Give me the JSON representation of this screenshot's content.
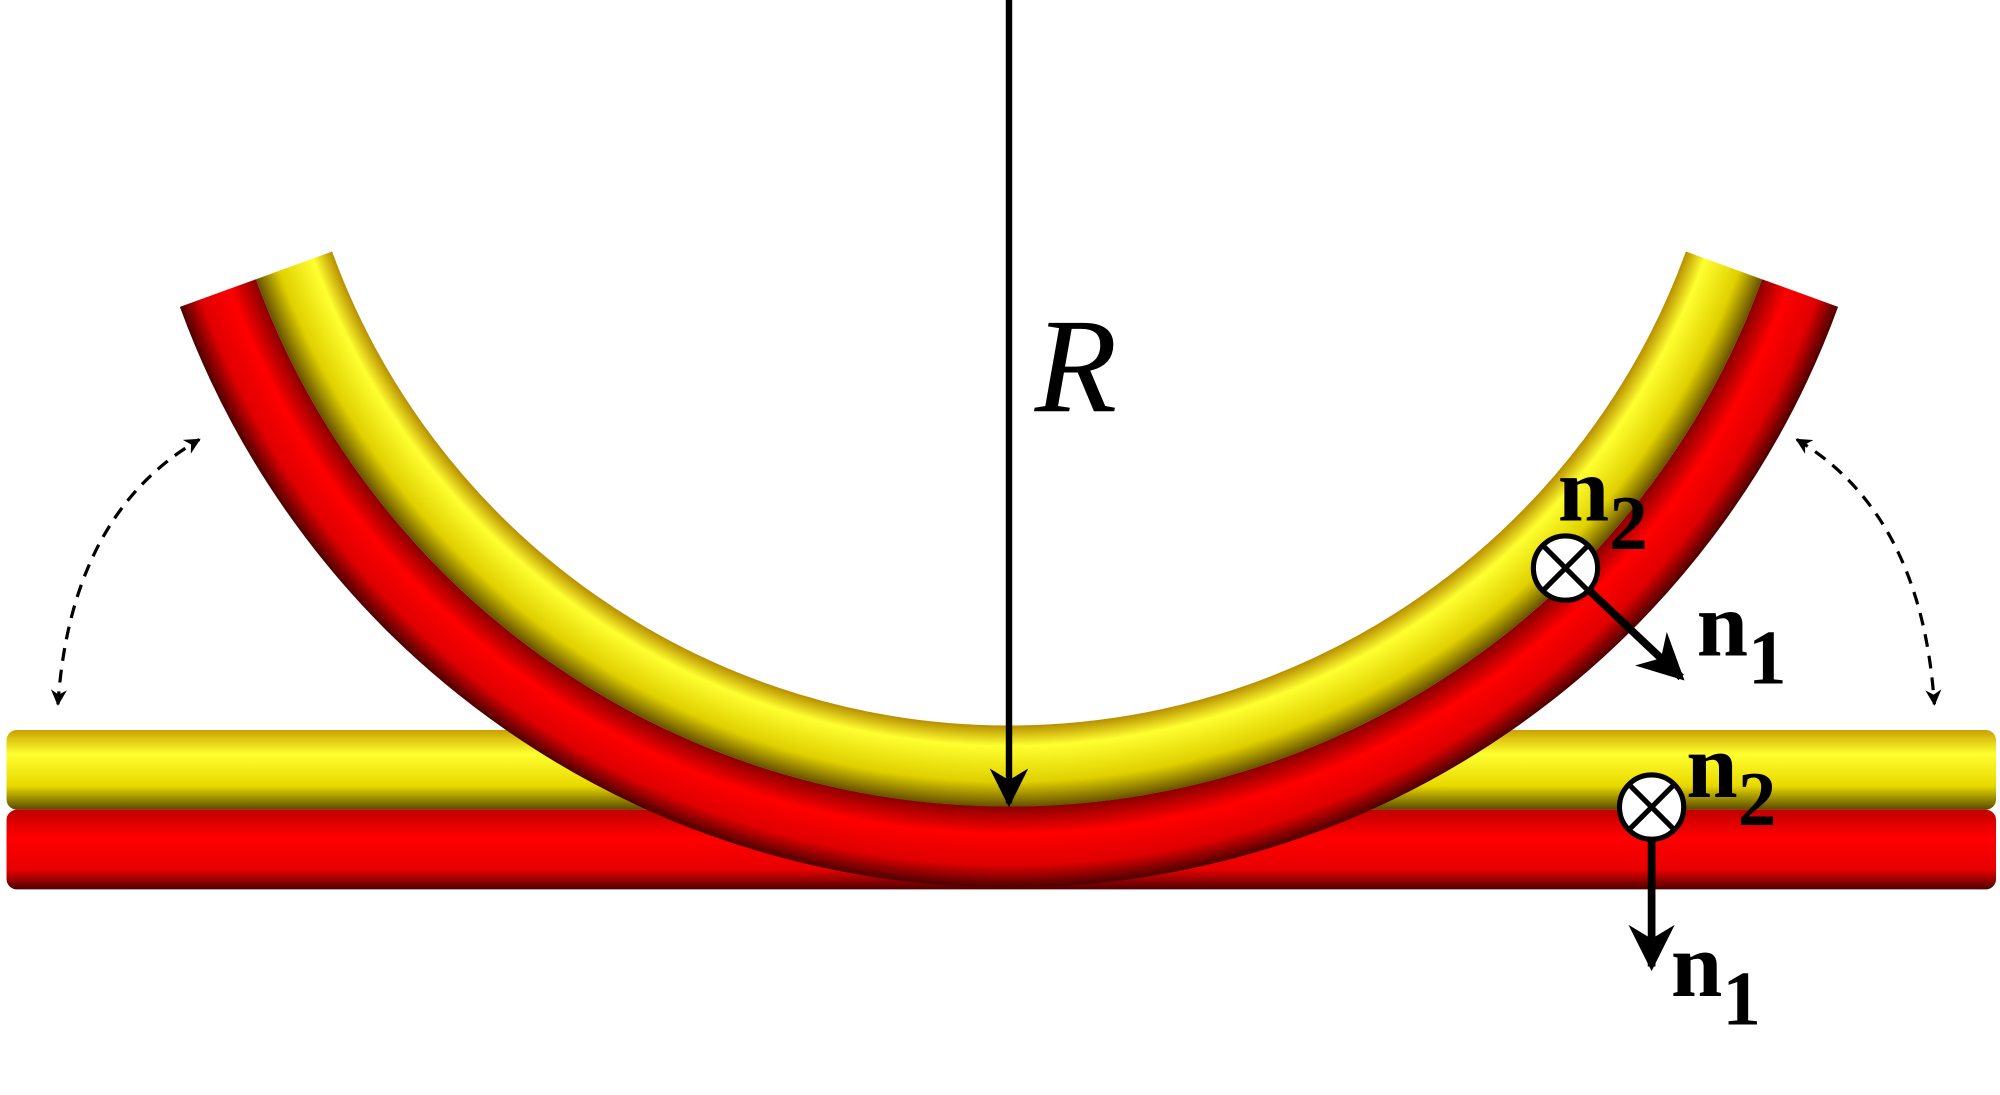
{
  "labels": {
    "radius": "R",
    "bent_n2": {
      "base": "n",
      "sub": "2"
    },
    "bent_n1": {
      "base": "n",
      "sub": "1"
    },
    "straight_n2": {
      "base": "n",
      "sub": "2"
    },
    "straight_n1": {
      "base": "n",
      "sub": "1"
    }
  }
}
